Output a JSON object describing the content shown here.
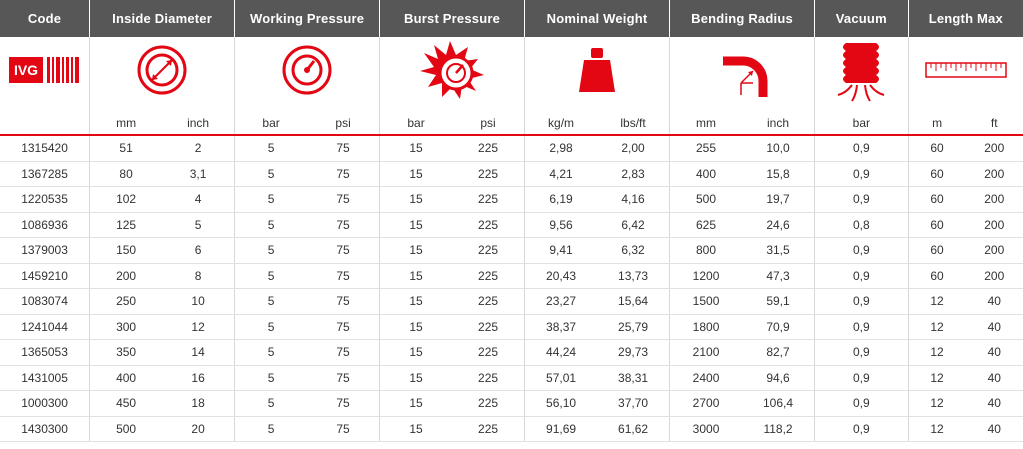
{
  "headers": [
    "Code",
    "Inside Diameter",
    "Working Pressure",
    "Burst Pressure",
    "Nominal Weight",
    "Bending Radius",
    "Vacuum",
    "Length Max"
  ],
  "icons": {
    "brand_logo": "ivg-barcode-logo",
    "inside_diameter": "diameter-icon",
    "working_pressure": "gauge-icon",
    "burst_pressure": "burst-gauge-icon",
    "nominal_weight": "weight-icon",
    "bending_radius": "bending-radius-icon",
    "vacuum": "vacuum-hose-icon",
    "length_max": "ruler-icon"
  },
  "logo_text": "IVG",
  "units": [
    "mm",
    "inch",
    "bar",
    "psi",
    "bar",
    "psi",
    "kg/m",
    "lbs/ft",
    "mm",
    "inch",
    "bar",
    "m",
    "ft"
  ],
  "colors": {
    "accent": "#e30613",
    "header_bg": "#575757"
  },
  "rows": [
    [
      "1315420",
      "51",
      "2",
      "5",
      "75",
      "15",
      "225",
      "2,98",
      "2,00",
      "255",
      "10,0",
      "0,9",
      "60",
      "200"
    ],
    [
      "1367285",
      "80",
      "3,1",
      "5",
      "75",
      "15",
      "225",
      "4,21",
      "2,83",
      "400",
      "15,8",
      "0,9",
      "60",
      "200"
    ],
    [
      "1220535",
      "102",
      "4",
      "5",
      "75",
      "15",
      "225",
      "6,19",
      "4,16",
      "500",
      "19,7",
      "0,9",
      "60",
      "200"
    ],
    [
      "1086936",
      "125",
      "5",
      "5",
      "75",
      "15",
      "225",
      "9,56",
      "6,42",
      "625",
      "24,6",
      "0,8",
      "60",
      "200"
    ],
    [
      "1379003",
      "150",
      "6",
      "5",
      "75",
      "15",
      "225",
      "9,41",
      "6,32",
      "800",
      "31,5",
      "0,9",
      "60",
      "200"
    ],
    [
      "1459210",
      "200",
      "8",
      "5",
      "75",
      "15",
      "225",
      "20,43",
      "13,73",
      "1200",
      "47,3",
      "0,9",
      "60",
      "200"
    ],
    [
      "1083074",
      "250",
      "10",
      "5",
      "75",
      "15",
      "225",
      "23,27",
      "15,64",
      "1500",
      "59,1",
      "0,9",
      "12",
      "40"
    ],
    [
      "1241044",
      "300",
      "12",
      "5",
      "75",
      "15",
      "225",
      "38,37",
      "25,79",
      "1800",
      "70,9",
      "0,9",
      "12",
      "40"
    ],
    [
      "1365053",
      "350",
      "14",
      "5",
      "75",
      "15",
      "225",
      "44,24",
      "29,73",
      "2100",
      "82,7",
      "0,9",
      "12",
      "40"
    ],
    [
      "1431005",
      "400",
      "16",
      "5",
      "75",
      "15",
      "225",
      "57,01",
      "38,31",
      "2400",
      "94,6",
      "0,9",
      "12",
      "40"
    ],
    [
      "1000300",
      "450",
      "18",
      "5",
      "75",
      "15",
      "225",
      "56,10",
      "37,70",
      "2700",
      "106,4",
      "0,9",
      "12",
      "40"
    ],
    [
      "1430300",
      "500",
      "20",
      "5",
      "75",
      "15",
      "225",
      "91,69",
      "61,62",
      "3000",
      "118,2",
      "0,9",
      "12",
      "40"
    ]
  ]
}
